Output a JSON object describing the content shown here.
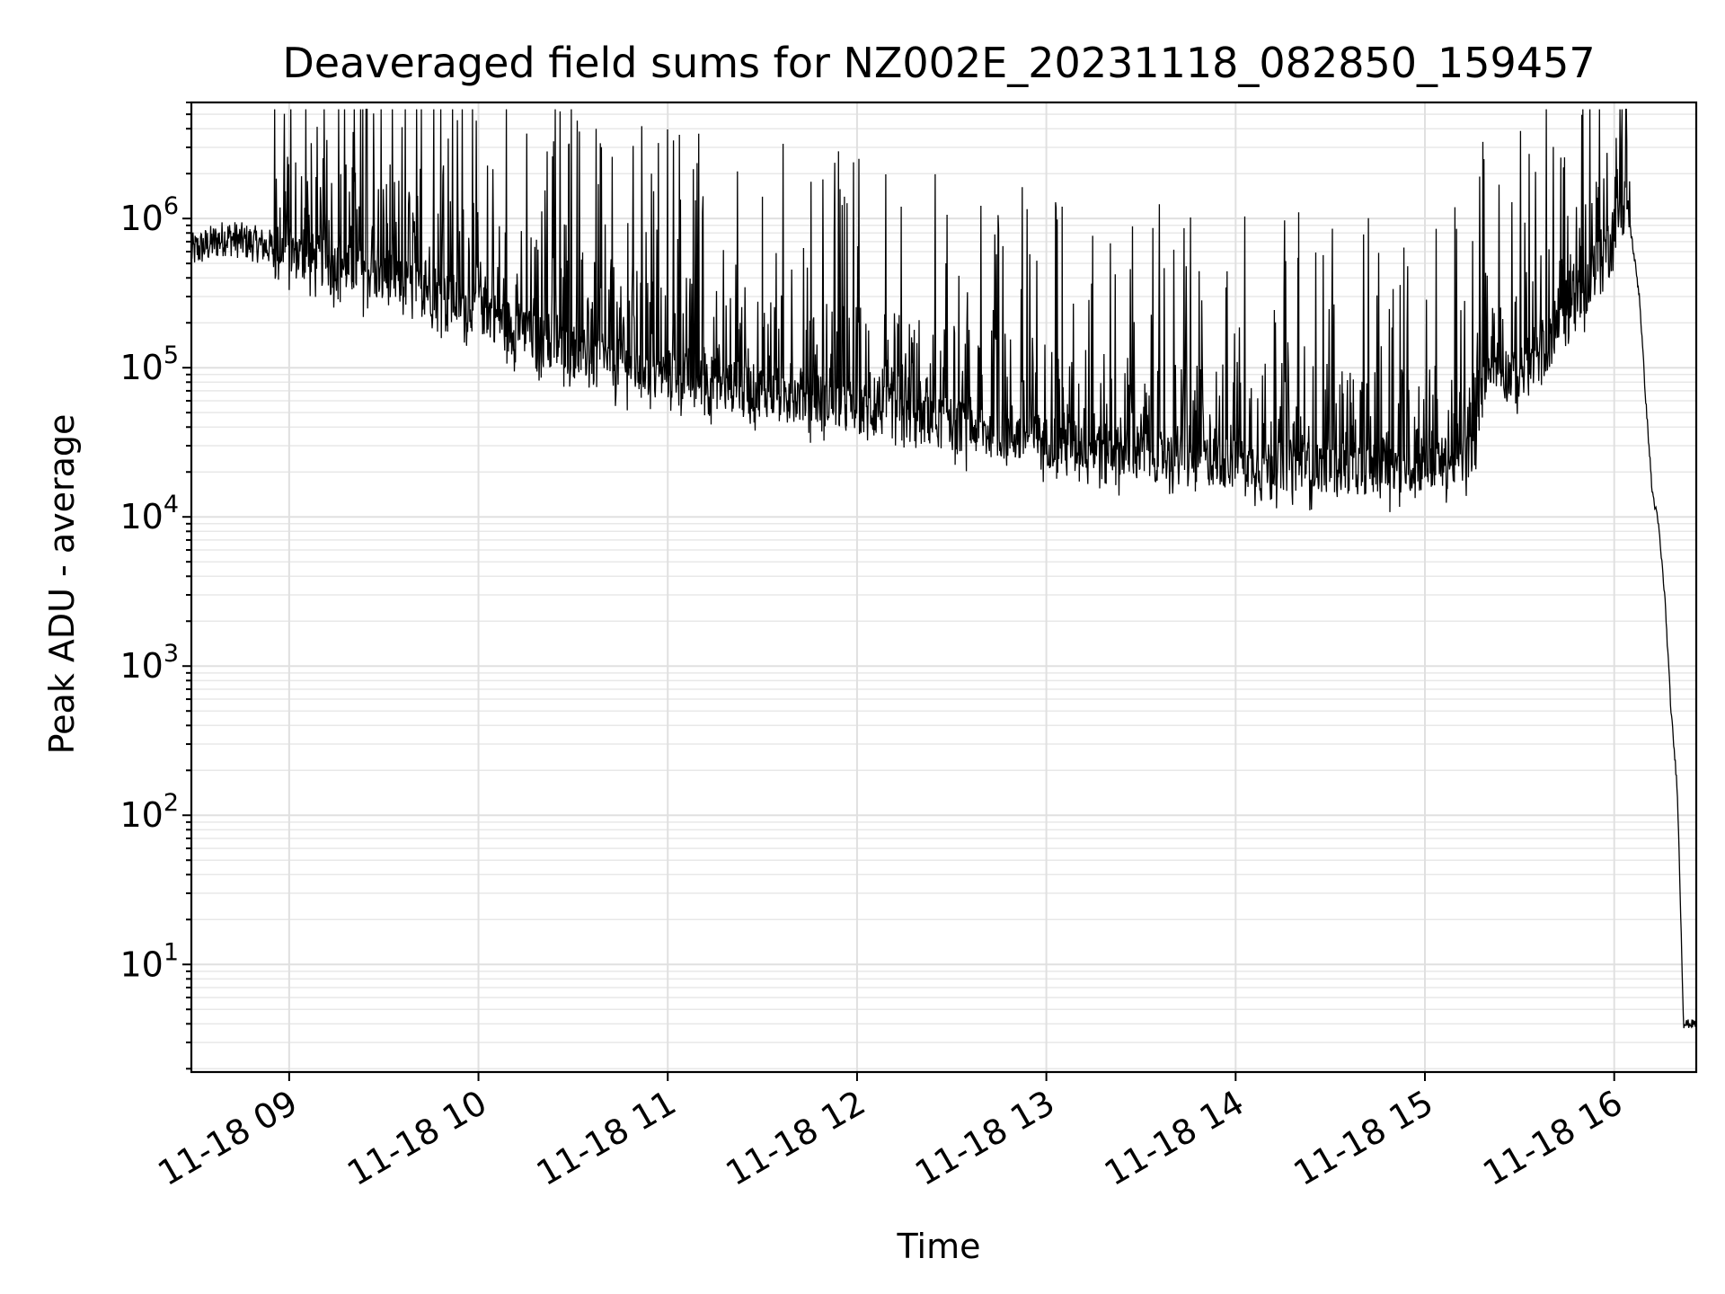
{
  "chart_data": {
    "type": "line",
    "title": "Deaveraged field sums for NZ002E_20231118_082850_159457",
    "xlabel": "Time",
    "ylabel": "Peak ADU - average",
    "y_scale": "log",
    "ylim": [
      1.9,
      6000000
    ],
    "xlim": [
      "2023-11-18 08:29",
      "2023-11-18 16:26"
    ],
    "grid": true,
    "line_color": "#000000",
    "x_ticks": [
      "11-18 09",
      "11-18 10",
      "11-18 11",
      "11-18 12",
      "11-18 13",
      "11-18 14",
      "11-18 15",
      "11-18 16"
    ],
    "y_ticks": [
      {
        "value": 10,
        "base": "10",
        "exp": "1"
      },
      {
        "value": 100,
        "base": "10",
        "exp": "2"
      },
      {
        "value": 1000,
        "base": "10",
        "exp": "3"
      },
      {
        "value": 10000,
        "base": "10",
        "exp": "4"
      },
      {
        "value": 100000,
        "base": "10",
        "exp": "5"
      },
      {
        "value": 1000000,
        "base": "10",
        "exp": "6"
      }
    ],
    "series": [
      {
        "x": [
          "2023-11-18 08:29",
          "2023-11-18 08:40",
          "2023-11-18 09:00",
          "2023-11-18 09:20",
          "2023-11-18 09:40",
          "2023-11-18 10:00",
          "2023-11-18 10:20",
          "2023-11-18 10:40",
          "2023-11-18 11:00",
          "2023-11-18 11:20",
          "2023-11-18 11:40",
          "2023-11-18 12:00",
          "2023-11-18 12:20",
          "2023-11-18 12:40",
          "2023-11-18 13:00",
          "2023-11-18 13:20",
          "2023-11-18 13:40",
          "2023-11-18 14:00",
          "2023-11-18 14:20",
          "2023-11-18 14:40",
          "2023-11-18 15:00",
          "2023-11-18 15:15",
          "2023-11-18 15:20",
          "2023-11-18 15:30",
          "2023-11-18 15:40",
          "2023-11-18 15:50",
          "2023-11-18 16:00",
          "2023-11-18 16:04",
          "2023-11-18 16:08",
          "2023-11-18 16:10",
          "2023-11-18 16:12",
          "2023-11-18 16:14",
          "2023-11-18 16:16",
          "2023-11-18 16:18",
          "2023-11-18 16:20",
          "2023-11-18 16:22",
          "2023-11-18 16:26"
        ],
        "base": [
          600000,
          750000,
          600000,
          450000,
          350000,
          250000,
          150000,
          110000,
          90000,
          75000,
          65000,
          55000,
          45000,
          38000,
          32000,
          28000,
          25000,
          23000,
          22000,
          21000,
          22000,
          25000,
          120000,
          80000,
          150000,
          300000,
          900000,
          1300000,
          300000,
          60000,
          15000,
          9000,
          3000,
          500,
          150,
          4,
          4
        ],
        "spikes": [
          {
            "x": "2023-11-18 09:07",
            "y": 3200000
          },
          {
            "x": "2023-11-18 09:18",
            "y": 2300000
          },
          {
            "x": "2023-11-18 09:20",
            "y": 2200000
          },
          {
            "x": "2023-11-18 09:32",
            "y": 2300000
          },
          {
            "x": "2023-11-18 10:38",
            "y": 1700000
          },
          {
            "x": "2023-11-18 11:30",
            "y": 1400000
          },
          {
            "x": "2023-11-18 11:56",
            "y": 1400000
          },
          {
            "x": "2023-11-18 12:14",
            "y": 1200000
          },
          {
            "x": "2023-11-18 13:05",
            "y": 1200000
          },
          {
            "x": "2023-11-18 14:20",
            "y": 1100000
          },
          {
            "x": "2023-11-18 15:50",
            "y": 1400000
          },
          {
            "x": "2023-11-18 16:04",
            "y": 3200000
          }
        ]
      }
    ]
  }
}
